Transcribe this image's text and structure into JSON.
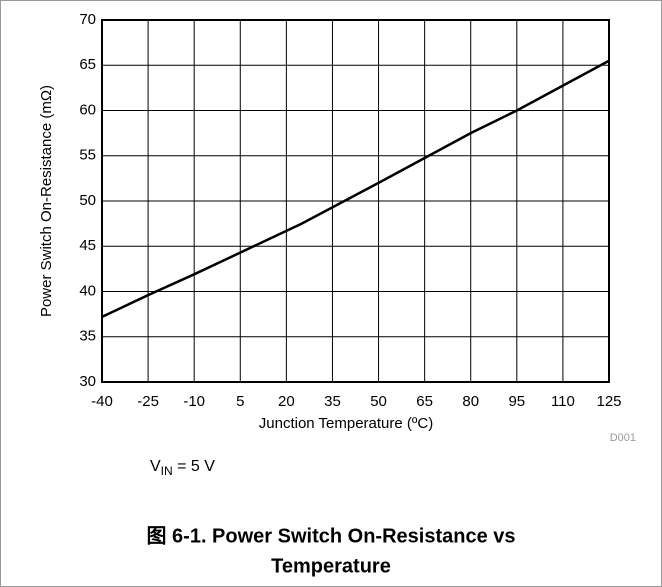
{
  "chart_data": {
    "type": "line",
    "ylabel": "Power Switch On-Resistance (mΩ)",
    "xlabel": "Junction Temperature (ºC)",
    "code": "D001",
    "annotation": [
      "V",
      "IN",
      " = 5 V"
    ],
    "caption": [
      "图 6-1. Power Switch On-Resistance vs",
      "Temperature"
    ],
    "x": [
      -40,
      -25,
      -10,
      5,
      25,
      50,
      80,
      95,
      125
    ],
    "series": [
      {
        "name": "VIN = 5 V",
        "color": "#000000",
        "values": [
          37.2,
          39.6,
          41.9,
          44.3,
          47.5,
          52,
          57.5,
          60,
          65.5
        ]
      }
    ],
    "xlim": [
      -40,
      125
    ],
    "xticks": [
      -40,
      -25,
      -10,
      5,
      20,
      35,
      50,
      65,
      80,
      95,
      110,
      125
    ],
    "ylim": [
      30,
      70
    ],
    "yticks": [
      30,
      35,
      40,
      45,
      50,
      55,
      60,
      65,
      70
    ],
    "grid": true
  }
}
